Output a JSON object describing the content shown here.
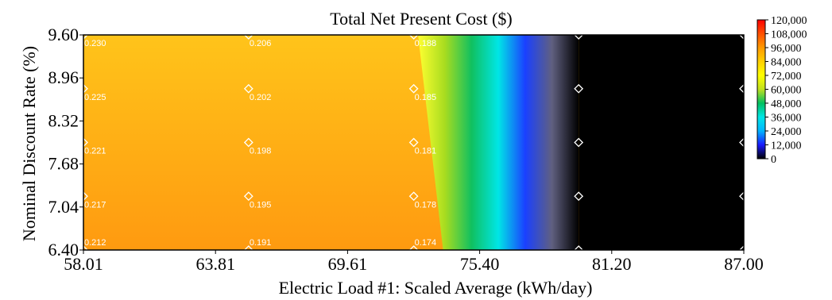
{
  "chart_data": {
    "type": "heatmap",
    "title": "Total Net Present  Cost ($)",
    "xlabel": "Electric Load #1: Scaled Average (kWh/day)",
    "ylabel": "Nominal Discount Rate (%)",
    "xlim": [
      58.01,
      87.0
    ],
    "ylim": [
      6.4,
      9.6
    ],
    "x_ticks": [
      "58.01",
      "63.81",
      "69.61",
      "75.40",
      "81.20",
      "87.00"
    ],
    "y_ticks": [
      "6.40",
      "7.04",
      "7.68",
      "8.32",
      "8.96",
      "9.60"
    ],
    "colorbar": {
      "min": 0,
      "max": 120000,
      "labels": [
        "120,000",
        "108,000",
        "96,000",
        "84,000",
        "72,000",
        "60,000",
        "48,000",
        "36,000",
        "24,000",
        "12,000",
        "0"
      ],
      "colors": [
        "#000000",
        "#1a1aff",
        "#00b4ff",
        "#00e6e6",
        "#00c060",
        "#c0e020",
        "#ffff00",
        "#ffd000",
        "#ff9a00",
        "#ff5000",
        "#ff0000"
      ]
    },
    "surface": {
      "left_color": "#ffc41a",
      "left_bottom_color": "#ff9a10",
      "bands": [
        {
          "value": "",
          "color": "#ffff30"
        },
        {
          "value": "",
          "color": "#a8dc20"
        },
        {
          "value": "",
          "color": "#10c060"
        },
        {
          "value": "",
          "color": "#00e6e6"
        },
        {
          "value": "",
          "color": "#1a40ff"
        },
        {
          "value": "",
          "color": "#606080"
        },
        {
          "value": "",
          "color": "#000000"
        }
      ]
    },
    "sample_points": [
      {
        "x": 58.01,
        "y": 9.6,
        "label": "0.230"
      },
      {
        "x": 58.01,
        "y": 8.8,
        "label": "0.225"
      },
      {
        "x": 58.01,
        "y": 8.0,
        "label": "0.221"
      },
      {
        "x": 58.01,
        "y": 7.2,
        "label": "0.217"
      },
      {
        "x": 58.01,
        "y": 6.4,
        "label": "0.212"
      },
      {
        "x": 65.26,
        "y": 9.6,
        "label": "0.206"
      },
      {
        "x": 65.26,
        "y": 8.8,
        "label": "0.202"
      },
      {
        "x": 65.26,
        "y": 8.0,
        "label": "0.198"
      },
      {
        "x": 65.26,
        "y": 7.2,
        "label": "0.195"
      },
      {
        "x": 65.26,
        "y": 6.4,
        "label": "0.191"
      },
      {
        "x": 72.51,
        "y": 9.6,
        "label": "0.188"
      },
      {
        "x": 72.51,
        "y": 8.8,
        "label": "0.185"
      },
      {
        "x": 72.51,
        "y": 8.0,
        "label": "0.181"
      },
      {
        "x": 72.51,
        "y": 7.2,
        "label": "0.178"
      },
      {
        "x": 72.51,
        "y": 6.4,
        "label": "0.174"
      },
      {
        "x": 79.75,
        "y": 9.6,
        "label": ""
      },
      {
        "x": 79.75,
        "y": 8.8,
        "label": ""
      },
      {
        "x": 79.75,
        "y": 8.0,
        "label": ""
      },
      {
        "x": 79.75,
        "y": 7.2,
        "label": ""
      },
      {
        "x": 79.75,
        "y": 6.4,
        "label": ""
      },
      {
        "x": 87.0,
        "y": 9.6,
        "label": ""
      },
      {
        "x": 87.0,
        "y": 8.8,
        "label": ""
      },
      {
        "x": 87.0,
        "y": 8.0,
        "label": ""
      },
      {
        "x": 87.0,
        "y": 7.2,
        "label": ""
      },
      {
        "x": 87.0,
        "y": 6.4,
        "label": ""
      }
    ]
  }
}
